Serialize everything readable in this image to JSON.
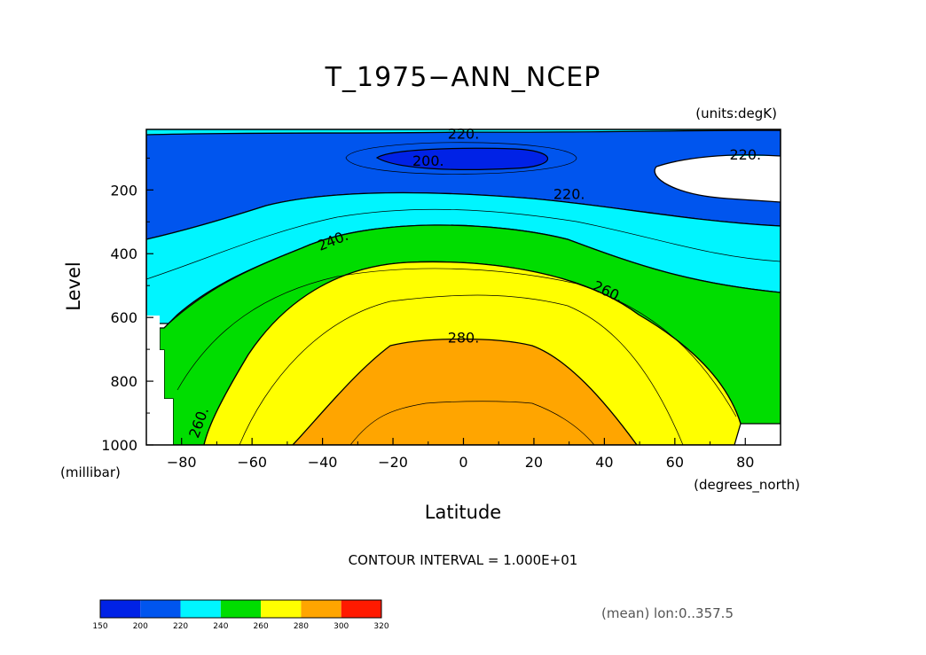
{
  "chart_data": {
    "type": "contour",
    "title": "T_1975−ANN_NCEP",
    "units_label": "(units:degK)",
    "xlabel": "Latitude",
    "x_units_label": "(degrees_north)",
    "ylabel": "Level",
    "y_units_label": "(millibar)",
    "xlim": [
      -90,
      90
    ],
    "ylim": [
      1000,
      10
    ],
    "x_ticks": [
      "−80",
      "−60",
      "−40",
      "−20",
      "0",
      "20",
      "40",
      "60",
      "80"
    ],
    "x_tick_values": [
      -80,
      -60,
      -40,
      -20,
      0,
      20,
      40,
      60,
      80
    ],
    "y_ticks": [
      "200",
      "400",
      "600",
      "800",
      "1000"
    ],
    "y_tick_values": [
      200,
      400,
      600,
      800,
      1000
    ],
    "contour_interval_text": "CONTOUR INTERVAL = 1.000E+01",
    "contour_labels": [
      {
        "text": "220.",
        "lat": 0,
        "p": 25
      },
      {
        "text": "200.",
        "lat": -10,
        "p": 110
      },
      {
        "text": "220.",
        "lat": 80,
        "p": 90
      },
      {
        "text": "220.",
        "lat": 30,
        "p": 215
      },
      {
        "text": "240.",
        "lat": -37,
        "p": 360
      },
      {
        "text": "260.",
        "lat": 41,
        "p": 520
      },
      {
        "text": "280.",
        "lat": 0,
        "p": 665
      },
      {
        "text": "260.",
        "lat": -75,
        "p": 930
      }
    ],
    "colorbar": {
      "levels": [
        "150",
        "200",
        "220",
        "240",
        "260",
        "280",
        "300",
        "320"
      ],
      "colors": [
        "#0022e6",
        "#0055ee",
        "#00f5ff",
        "#00dd00",
        "#ffff00",
        "#ffa500",
        "#ff1a00"
      ]
    },
    "footnote": "(mean) lon:0..357.5"
  }
}
